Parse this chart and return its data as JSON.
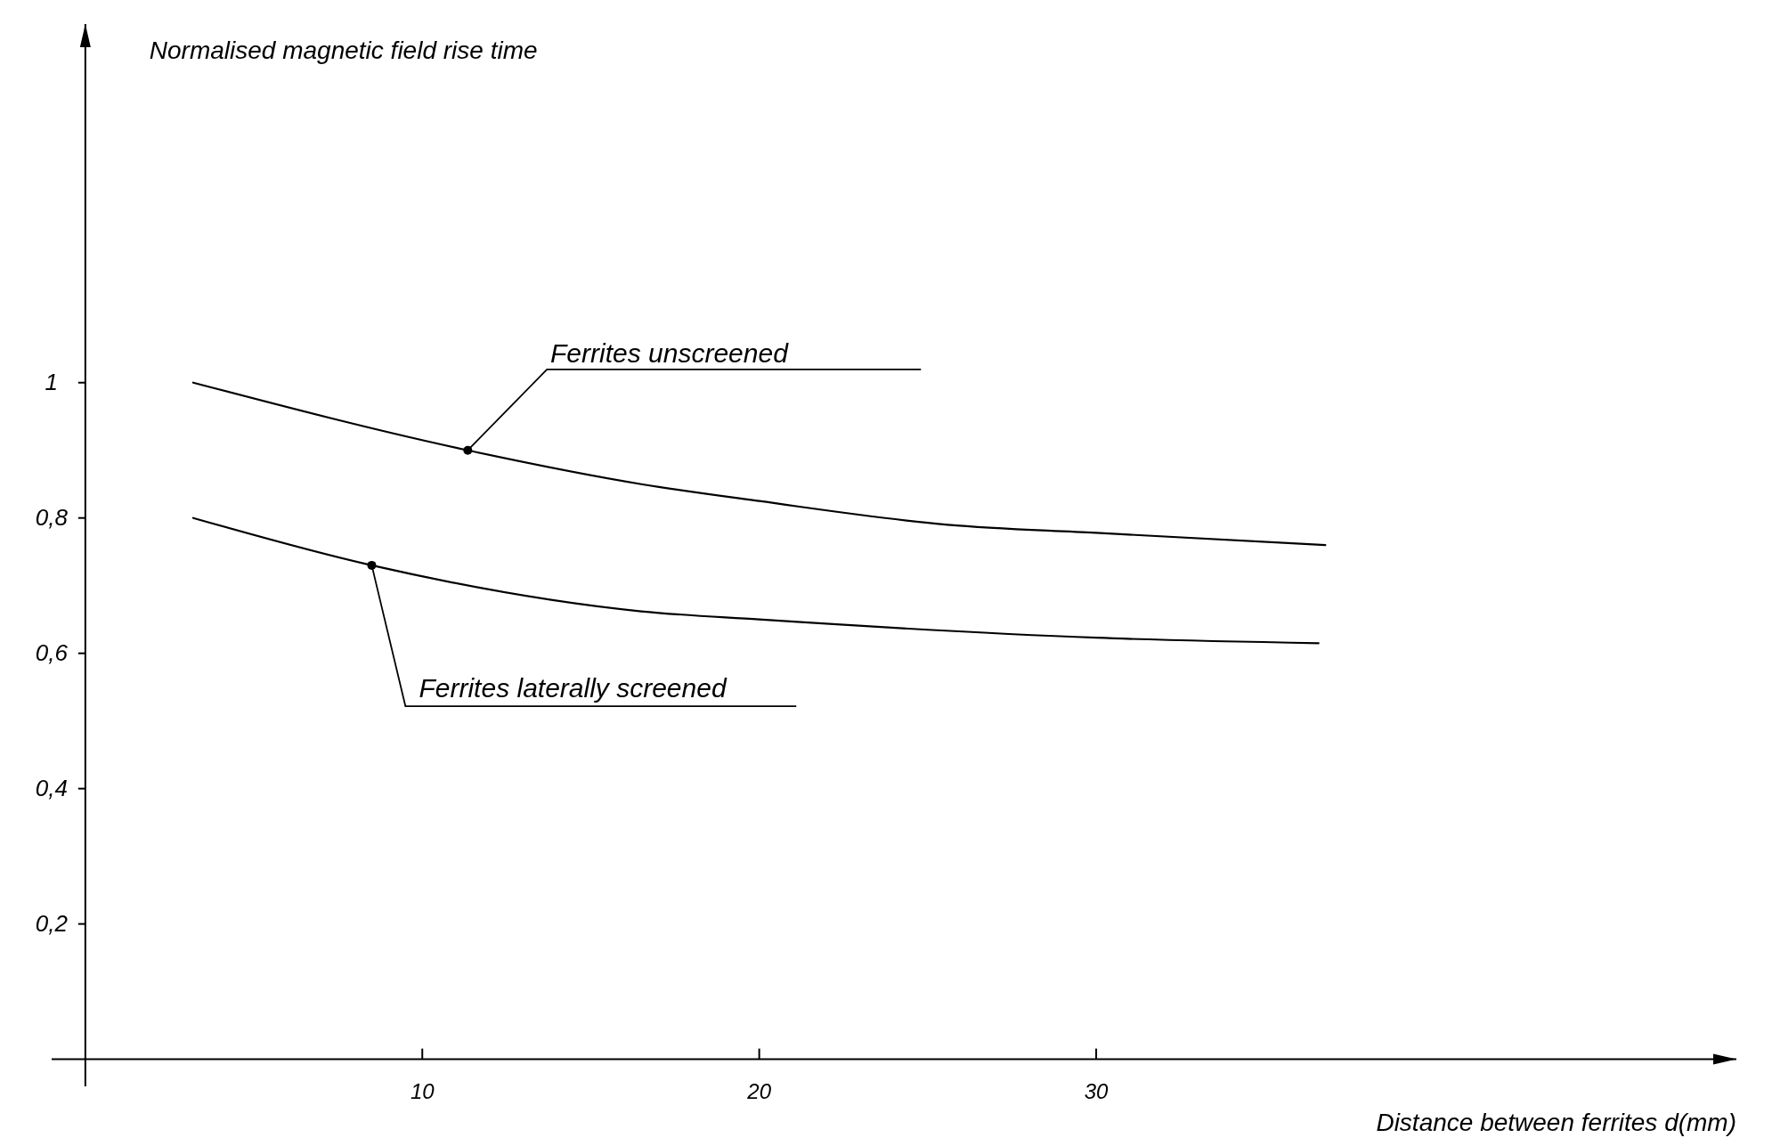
{
  "chart_data": {
    "type": "line",
    "xlabel": "Distance between ferrites d(mm)",
    "ylabel": "Normalised magnetic field rise time",
    "xlim": [
      -1,
      49
    ],
    "ylim": [
      -0.04,
      1.53
    ],
    "xticks": [
      10,
      20,
      30
    ],
    "yticks": [
      {
        "value": 0.2,
        "label": "0,2"
      },
      {
        "value": 0.4,
        "label": "0,4"
      },
      {
        "value": 0.6,
        "label": "0,6"
      },
      {
        "value": 0.8,
        "label": "0,8"
      },
      {
        "value": 1,
        "label": "1"
      }
    ],
    "grid": false,
    "line_style": "solid",
    "series": [
      {
        "name": "Ferrites unscreened",
        "color": "#000000",
        "x": [
          3.2,
          11.35,
          16.5,
          20,
          25.6,
          30,
          36.8
        ],
        "values": [
          1.0,
          0.9,
          0.85,
          0.825,
          0.79,
          0.778,
          0.76
        ]
      },
      {
        "name": "Ferrites laterally screened",
        "color": "#000000",
        "x": [
          3.2,
          8.5,
          16.5,
          20,
          30,
          36.6
        ],
        "values": [
          0.8,
          0.73,
          0.662,
          0.65,
          0.623,
          0.615
        ]
      }
    ]
  }
}
